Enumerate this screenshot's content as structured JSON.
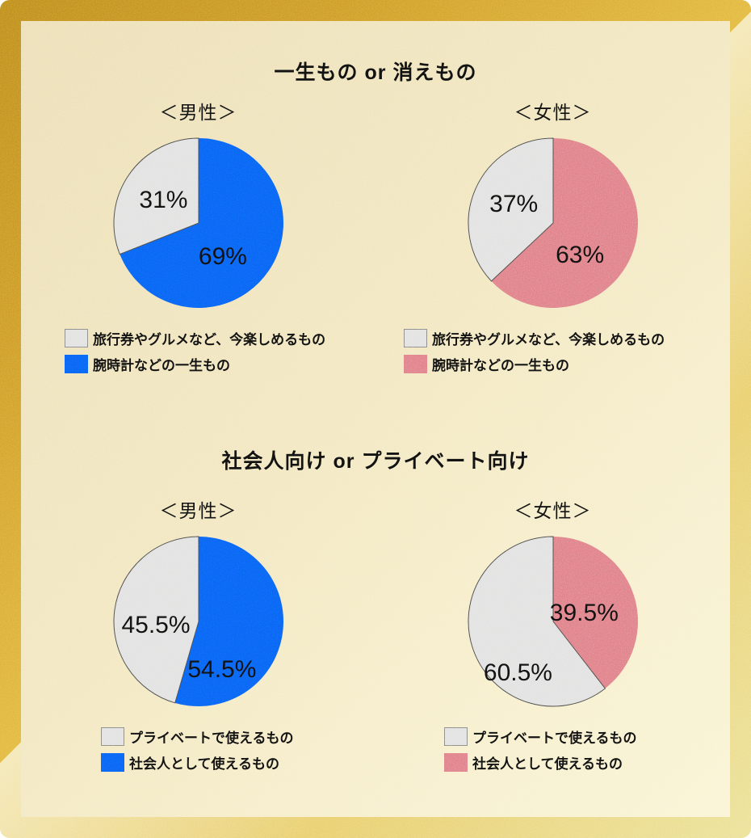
{
  "colors": {
    "male_accent": "#0B63F5",
    "female_accent": "#E0808A",
    "neutral_slice": "#E2E2E2",
    "slice_outline": "#4D4D4D",
    "background_cream": "#F2E7C1",
    "gold_border": "#D3A232",
    "text": "#111111"
  },
  "chart_data": [
    {
      "type": "pie",
      "title": "一生もの or 消えもの",
      "legend_position": "bottom",
      "pies": [
        {
          "subtitle": "＜男性＞",
          "slices": [
            {
              "label": "腕時計などの一生もの",
              "value": 69,
              "text": "69%",
              "color": "#0B63F5",
              "label_pos": [
                0.29,
                0.4
              ]
            },
            {
              "label": "旅行券やグルメなど、今楽しめるもの",
              "value": 31,
              "text": "31%",
              "color": "#E2E2E2",
              "outline": "#4D4D4D",
              "label_pos": [
                -0.41,
                -0.27
              ]
            }
          ],
          "legend": [
            {
              "label": "旅行券やグルメなど、今楽しめるもの",
              "color": "#E2E2E2",
              "bordered": true
            },
            {
              "label": "腕時計などの一生もの",
              "color": "#0B63F5"
            }
          ]
        },
        {
          "subtitle": "＜女性＞",
          "slices": [
            {
              "label": "腕時計などの一生もの",
              "value": 63,
              "text": "63%",
              "color": "#E0808A",
              "label_pos": [
                0.32,
                0.38
              ]
            },
            {
              "label": "旅行券やグルメなど、今楽しめるもの",
              "value": 37,
              "text": "37%",
              "color": "#E2E2E2",
              "outline": "#4D4D4D",
              "label_pos": [
                -0.46,
                -0.22
              ]
            }
          ],
          "legend": [
            {
              "label": "旅行券やグルメなど、今楽しめるもの",
              "color": "#E2E2E2",
              "bordered": true
            },
            {
              "label": "腕時計などの一生もの",
              "color": "#E0808A"
            }
          ]
        }
      ]
    },
    {
      "type": "pie",
      "title": "社会人向け or プライベート向け",
      "legend_position": "bottom",
      "pies": [
        {
          "subtitle": "＜男性＞",
          "slices": [
            {
              "label": "社会人として使えるもの",
              "value": 54.5,
              "text": "54.5%",
              "color": "#0B63F5",
              "label_pos": [
                0.28,
                0.57
              ]
            },
            {
              "label": "プライベートで使えるもの",
              "value": 45.5,
              "text": "45.5%",
              "color": "#E2E2E2",
              "outline": "#4D4D4D",
              "label_pos": [
                -0.5,
                0.05
              ]
            }
          ],
          "legend": [
            {
              "label": "プライベートで使えるもの",
              "color": "#E2E2E2",
              "bordered": true
            },
            {
              "label": "社会人として使えるもの",
              "color": "#0B63F5"
            }
          ]
        },
        {
          "subtitle": "＜女性＞",
          "slices": [
            {
              "label": "社会人として使えるもの",
              "value": 39.5,
              "text": "39.5%",
              "color": "#E0808A",
              "label_pos": [
                0.37,
                -0.1
              ]
            },
            {
              "label": "プライベートで使えるもの",
              "value": 60.5,
              "text": "60.5%",
              "color": "#E2E2E2",
              "outline": "#4D4D4D",
              "label_pos": [
                -0.41,
                0.61
              ]
            }
          ],
          "legend": [
            {
              "label": "プライベートで使えるもの",
              "color": "#E2E2E2",
              "bordered": true
            },
            {
              "label": "社会人として使えるもの",
              "color": "#E0808A"
            }
          ]
        }
      ]
    }
  ]
}
